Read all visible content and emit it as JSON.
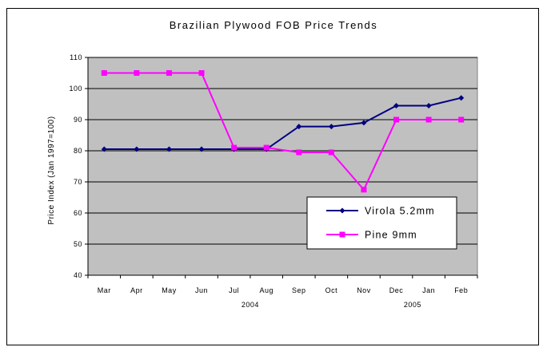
{
  "chart_data": {
    "type": "line",
    "title": "Brazilian Plywood FOB Price Trends",
    "ylabel": "Price Index (Jan 1997=100)",
    "xlabel": "",
    "categories": [
      "Mar",
      "Apr",
      "May",
      "Jun",
      "Jul",
      "Aug",
      "Sep",
      "Oct",
      "Nov",
      "Dec",
      "Jan",
      "Feb"
    ],
    "year_labels": [
      {
        "label": "2004",
        "category": "Jul",
        "after": "Aug"
      },
      {
        "label": "2005",
        "category": "Dec",
        "after": "Jan"
      }
    ],
    "ylim": [
      40,
      110
    ],
    "yticks": [
      "40",
      "50",
      "60",
      "70",
      "80",
      "90",
      "100",
      "110"
    ],
    "grid": true,
    "legend_position": "bottom-right",
    "series": [
      {
        "name": "Virola 5.2mm",
        "color": "#000080",
        "marker": "diamond",
        "values": [
          80.5,
          80.5,
          80.5,
          80.5,
          80.5,
          80.5,
          87.8,
          87.8,
          89,
          94.5,
          94.5,
          97
        ]
      },
      {
        "name": "Pine 9mm",
        "color": "#ff00ff",
        "marker": "square",
        "values": [
          105,
          105,
          105,
          105,
          81,
          81,
          79.5,
          79.5,
          67.5,
          90,
          90,
          90
        ]
      }
    ],
    "plot_background": "#c0c0c0"
  }
}
